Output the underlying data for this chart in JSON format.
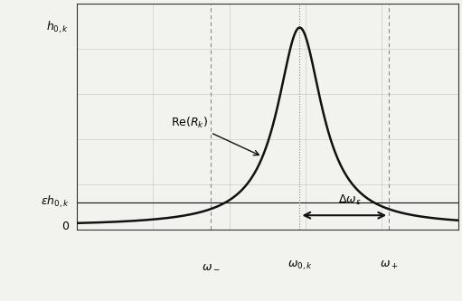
{
  "omega_0": 0.0,
  "omega_minus": -1.8,
  "omega_plus": 1.8,
  "h0k": 1.0,
  "epsilon": 0.12,
  "x_min": -4.5,
  "x_max": 3.2,
  "y_min": -0.02,
  "y_max": 1.12,
  "gamma": 0.55,
  "curve_color": "#111111",
  "grid_color": "#cccccc",
  "dashed_color": "#888888",
  "background_color": "#f2f2ee",
  "label_Re_Rk": "$\\mathrm{Re}(R_k)$",
  "label_delta": "$\\Delta\\omega_\\epsilon$",
  "label_h0k": "$h_{0,k}$",
  "label_eh0k": "$\\epsilon h_{0,k}$",
  "label_zero": "$0$",
  "label_omega_minus": "$\\omega_-$",
  "label_omega_0k": "$\\omega_{0,k}$",
  "label_omega_plus": "$\\omega_+$",
  "figsize": [
    5.11,
    3.33
  ],
  "dpi": 100
}
